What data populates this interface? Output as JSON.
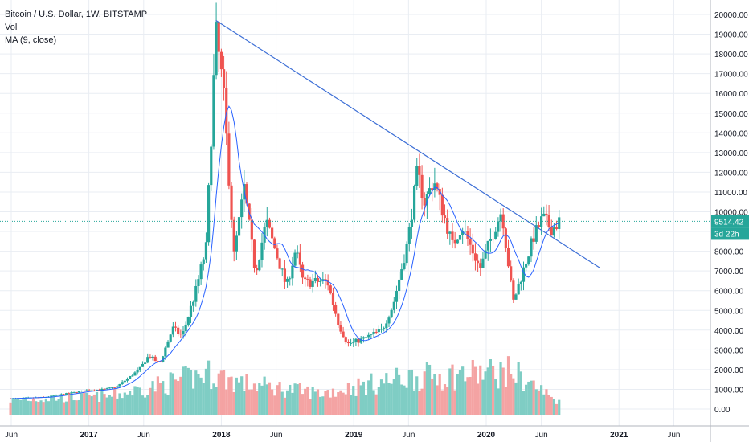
{
  "legend": {
    "title": "Bitcoin / U.S. Dollar, 1W, BITSTAMP",
    "vol": "Vol",
    "ma": "MA (9, close)"
  },
  "colors": {
    "up": "#26a69a",
    "down": "#ef5350",
    "up_vol": "#7fcdc4",
    "down_vol": "#f4a3a3",
    "ma": "#2962ff",
    "trendline": "#3d6fd6",
    "price_label": "#26a69a",
    "grid": "#e9edf3"
  },
  "chart_data": {
    "type": "candlestick",
    "title": "Bitcoin / U.S. Dollar, 1W, BITSTAMP",
    "ylim": [
      -1200,
      20700
    ],
    "y_ticks": [
      "20000.00",
      "19000.00",
      "18000.00",
      "17000.00",
      "16000.00",
      "15000.00",
      "14000.00",
      "13000.00",
      "12000.00",
      "11000.00",
      "10000.00",
      "9000.00",
      "8000.00",
      "7000.00",
      "6000.00",
      "5000.00",
      "4000.00",
      "3000.00",
      "2000.00",
      "1000.00",
      "0.00"
    ],
    "x_ticks": [
      "Jun",
      "2017",
      "Jun",
      "2018",
      "Jun",
      "2019",
      "Jun",
      "2020",
      "Jun",
      "2021",
      "Jun"
    ],
    "last_price": "9514.42",
    "countdown": "3d 22h",
    "price_path": [
      [
        "2016-05-30",
        530
      ],
      [
        "2016-09-01",
        600
      ],
      [
        "2016-12-31",
        960
      ],
      [
        "2017-02-15",
        1000
      ],
      [
        "2017-03-20",
        1150
      ],
      [
        "2017-05-20",
        2000
      ],
      [
        "2017-06-15",
        2700
      ],
      [
        "2017-07-15",
        2300
      ],
      [
        "2017-08-20",
        4100
      ],
      [
        "2017-09-15",
        3700
      ],
      [
        "2017-10-20",
        5800
      ],
      [
        "2017-11-20",
        8200
      ],
      [
        "2017-12-17",
        19100
      ],
      [
        "2018-01-07",
        16000
      ],
      [
        "2018-02-05",
        7800
      ],
      [
        "2018-03-05",
        11200
      ],
      [
        "2018-04-05",
        6900
      ],
      [
        "2018-05-05",
        9500
      ],
      [
        "2018-06-30",
        6200
      ],
      [
        "2018-07-25",
        8100
      ],
      [
        "2018-08-15",
        6400
      ],
      [
        "2018-10-20",
        6500
      ],
      [
        "2018-11-20",
        4300
      ],
      [
        "2018-12-15",
        3300
      ],
      [
        "2019-01-20",
        3500
      ],
      [
        "2019-03-20",
        4000
      ],
      [
        "2019-04-20",
        5300
      ],
      [
        "2019-05-30",
        8500
      ],
      [
        "2019-06-25",
        12000
      ],
      [
        "2019-07-15",
        10500
      ],
      [
        "2019-08-10",
        11600
      ],
      [
        "2019-09-30",
        8300
      ],
      [
        "2019-10-26",
        9300
      ],
      [
        "2019-12-15",
        7100
      ],
      [
        "2020-01-15",
        8700
      ],
      [
        "2020-02-13",
        10100
      ],
      [
        "2020-03-15",
        5400
      ],
      [
        "2020-04-10",
        6900
      ],
      [
        "2020-05-10",
        8700
      ],
      [
        "2020-06-05",
        9700
      ],
      [
        "2020-07-01",
        9100
      ],
      [
        "2020-07-20",
        9514
      ]
    ],
    "volume_path": [
      [
        "2016-05-30",
        450
      ],
      [
        "2017-03-01",
        650
      ],
      [
        "2017-12-01",
        1800
      ],
      [
        "2018-03-01",
        1300
      ],
      [
        "2018-10-01",
        800
      ],
      [
        "2019-06-01",
        1600
      ],
      [
        "2020-03-15",
        1900
      ],
      [
        "2020-07-20",
        350
      ]
    ],
    "trendline": [
      [
        "2017-12-17",
        19700
      ],
      [
        "2020-11-10",
        7150
      ]
    ]
  }
}
